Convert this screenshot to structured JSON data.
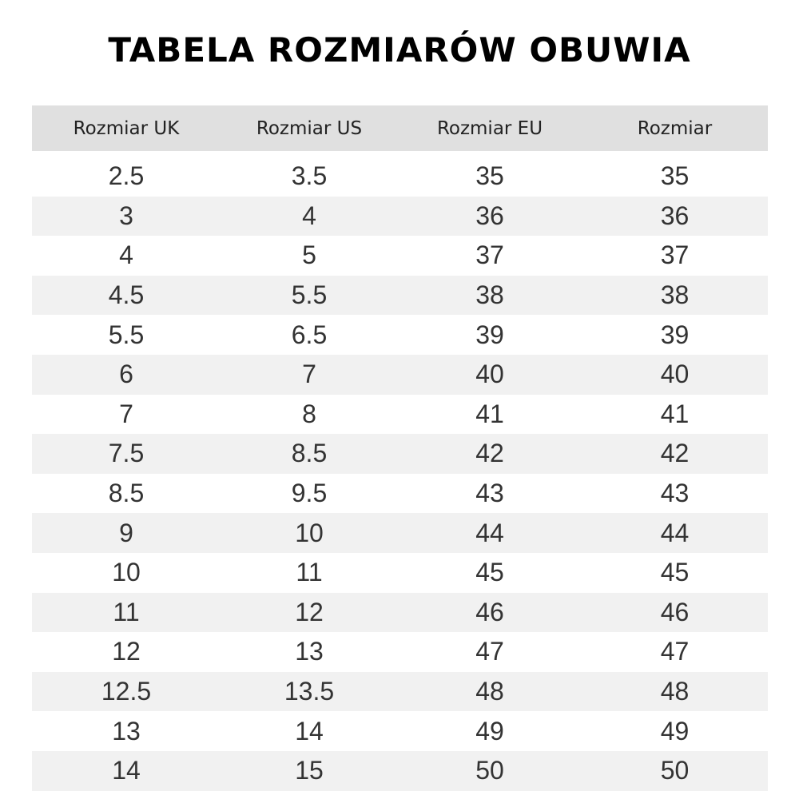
{
  "title": "TABELA ROZMIARÓW OBUWIA",
  "table": {
    "headers": [
      "Rozmiar UK",
      "Rozmiar US",
      "Rozmiar EU",
      "Rozmiar"
    ],
    "rows": [
      [
        "2.5",
        "3.5",
        "35",
        "35"
      ],
      [
        "3",
        "4",
        "36",
        "36"
      ],
      [
        "4",
        "5",
        "37",
        "37"
      ],
      [
        "4.5",
        "5.5",
        "38",
        "38"
      ],
      [
        "5.5",
        "6.5",
        "39",
        "39"
      ],
      [
        "6",
        "7",
        "40",
        "40"
      ],
      [
        "7",
        "8",
        "41",
        "41"
      ],
      [
        "7.5",
        "8.5",
        "42",
        "42"
      ],
      [
        "8.5",
        "9.5",
        "43",
        "43"
      ],
      [
        "9",
        "10",
        "44",
        "44"
      ],
      [
        "10",
        "11",
        "45",
        "45"
      ],
      [
        "11",
        "12",
        "46",
        "46"
      ],
      [
        "12",
        "13",
        "47",
        "47"
      ],
      [
        "12.5",
        "13.5",
        "48",
        "48"
      ],
      [
        "13",
        "14",
        "49",
        "49"
      ],
      [
        "14",
        "15",
        "50",
        "50"
      ]
    ]
  },
  "colors": {
    "header_bg": "#e0e0e0",
    "stripe_bg": "#f1f1f1"
  }
}
